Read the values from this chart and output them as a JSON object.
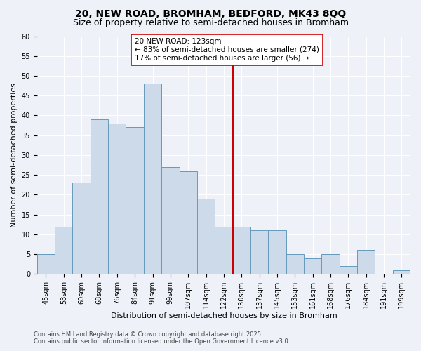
{
  "title1": "20, NEW ROAD, BROMHAM, BEDFORD, MK43 8QQ",
  "title2": "Size of property relative to semi-detached houses in Bromham",
  "xlabel": "Distribution of semi-detached houses by size in Bromham",
  "ylabel": "Number of semi-detached properties",
  "categories": [
    "45sqm",
    "53sqm",
    "60sqm",
    "68sqm",
    "76sqm",
    "84sqm",
    "91sqm",
    "99sqm",
    "107sqm",
    "114sqm",
    "122sqm",
    "130sqm",
    "137sqm",
    "145sqm",
    "153sqm",
    "161sqm",
    "168sqm",
    "176sqm",
    "184sqm",
    "191sqm",
    "199sqm"
  ],
  "values": [
    5,
    12,
    23,
    39,
    38,
    37,
    48,
    27,
    26,
    19,
    12,
    12,
    11,
    11,
    5,
    4,
    5,
    2,
    6,
    0,
    1
  ],
  "bar_color": "#ccdaea",
  "bar_edge_color": "#6699bb",
  "bg_color": "#eef2f8",
  "grid_color": "#ffffff",
  "vline_x": 10.5,
  "vline_color": "#cc0000",
  "annotation_text": "20 NEW ROAD: 123sqm\n← 83% of semi-detached houses are smaller (274)\n17% of semi-detached houses are larger (56) →",
  "annotation_box_facecolor": "#ffffff",
  "annotation_box_edge": "#cc0000",
  "ylim": [
    0,
    60
  ],
  "yticks": [
    0,
    5,
    10,
    15,
    20,
    25,
    30,
    35,
    40,
    45,
    50,
    55,
    60
  ],
  "footnote": "Contains HM Land Registry data © Crown copyright and database right 2025.\nContains public sector information licensed under the Open Government Licence v3.0.",
  "title_fontsize": 10,
  "subtitle_fontsize": 9,
  "axis_label_fontsize": 8,
  "tick_fontsize": 7,
  "annotation_fontsize": 7.5,
  "footnote_fontsize": 6
}
